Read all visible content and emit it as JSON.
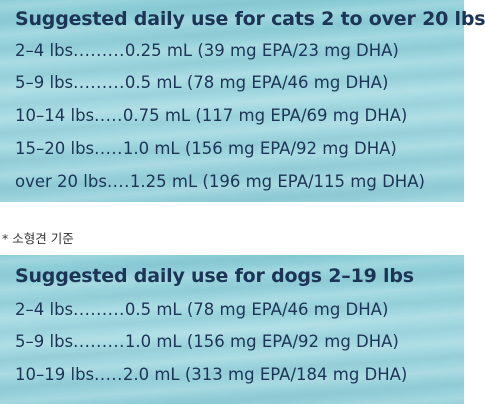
{
  "cats": {
    "title": "Suggested daily use for cats 2 to over 20 lbs",
    "rows": [
      {
        "weight": "2–4 lbs",
        "dots": ".........",
        "dose": "0.25 mL (39 mg EPA/23 mg DHA)"
      },
      {
        "weight": "5–9 lbs",
        "dots": ".........",
        "dose": "0.5 mL (78 mg EPA/46 mg DHA)"
      },
      {
        "weight": "10–14 lbs",
        "dots": ".....",
        "dose": "0.75 mL (117 mg EPA/69 mg DHA)"
      },
      {
        "weight": "15–20 lbs",
        "dots": ".....",
        "dose": "1.0 mL (156 mg EPA/92 mg DHA)"
      },
      {
        "weight": "over 20 lbs",
        "dots": "....",
        "dose": "1.25 mL (196 mg EPA/115 mg DHA)"
      }
    ]
  },
  "note": "* 소형견 기준",
  "dogs": {
    "title": "Suggested daily use for dogs 2–19 lbs",
    "rows": [
      {
        "weight": "2–4 lbs",
        "dots": ".........",
        "dose": "0.5 mL (78 mg EPA/46 mg DHA)"
      },
      {
        "weight": "5–9 lbs",
        "dots": ".........",
        "dose": "1.0 mL (156 mg EPA/92 mg DHA)"
      },
      {
        "weight": "10–19 lbs",
        "dots": ".....",
        "dose": "2.0 mL (313 mg EPA/184 mg DHA)"
      }
    ]
  }
}
